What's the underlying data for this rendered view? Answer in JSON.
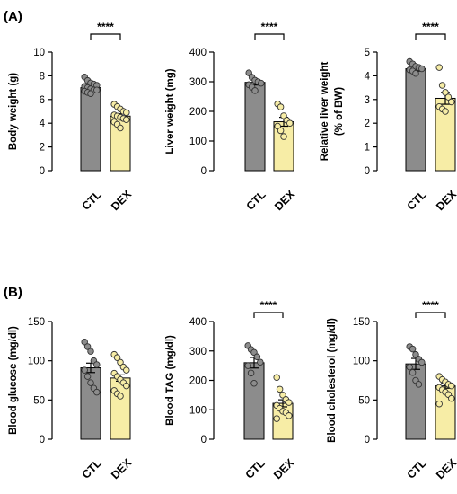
{
  "panels": [
    {
      "label": "(A)"
    },
    {
      "label": "(B)"
    }
  ],
  "colors": {
    "ctl_bar": "#8c8c8c",
    "dex_bar": "#f7eda6",
    "ctl_point": "#8c8c8c",
    "dex_point": "#f7eda6",
    "axis": "#000000"
  },
  "chart_data": [
    {
      "type": "bar",
      "panel": "A",
      "categories": [
        "CTL",
        "DEX"
      ],
      "ylabel": [
        "Body weight (g)"
      ],
      "ylim": [
        0,
        10
      ],
      "yticks": [
        "0",
        "2",
        "4",
        "6",
        "8",
        "10"
      ],
      "tick_values": [
        0,
        2,
        4,
        6,
        8,
        10
      ],
      "values": [
        7.0,
        4.6
      ],
      "sem": [
        0.15,
        0.2
      ],
      "points": [
        [
          7.9,
          7.6,
          7.4,
          7.3,
          7.2,
          7.1,
          7.0,
          6.9,
          6.8,
          6.8,
          6.7,
          6.6,
          6.5
        ],
        [
          5.6,
          5.4,
          5.2,
          5.0,
          4.9,
          4.7,
          4.6,
          4.5,
          4.4,
          4.3,
          4.1,
          3.9,
          3.6
        ]
      ],
      "significance": "****"
    },
    {
      "type": "bar",
      "panel": "A",
      "categories": [
        "CTL",
        "DEX"
      ],
      "ylabel": [
        "Liver weight (mg)"
      ],
      "ylim": [
        0,
        400
      ],
      "yticks": [
        "0",
        "100",
        "200",
        "300",
        "400"
      ],
      "tick_values": [
        0,
        100,
        200,
        300,
        400
      ],
      "values": [
        298,
        165
      ],
      "sem": [
        9,
        15
      ],
      "points": [
        [
          330,
          315,
          305,
          300,
          295,
          290,
          282,
          270
        ],
        [
          225,
          215,
          185,
          170,
          160,
          150,
          135,
          115
        ]
      ],
      "significance": "****"
    },
    {
      "type": "bar",
      "panel": "A",
      "categories": [
        "CTL",
        "DEX"
      ],
      "ylabel": [
        "Relative liver weight",
        "(% of BW)"
      ],
      "ylim": [
        0,
        5
      ],
      "yticks": [
        "0",
        "1",
        "2",
        "3",
        "4",
        "5"
      ],
      "tick_values": [
        0,
        1,
        2,
        3,
        4,
        5
      ],
      "values": [
        4.3,
        3.05
      ],
      "sem": [
        0.1,
        0.25
      ],
      "points": [
        [
          4.6,
          4.5,
          4.4,
          4.35,
          4.3,
          4.25,
          4.2,
          4.1
        ],
        [
          4.35,
          3.6,
          3.3,
          3.1,
          2.9,
          2.7,
          2.6,
          2.5
        ]
      ],
      "significance": "****"
    },
    {
      "type": "bar",
      "panel": "B",
      "categories": [
        "CTL",
        "DEX"
      ],
      "ylabel": [
        "Blood glucose (mg/dl)"
      ],
      "ylim": [
        0,
        150
      ],
      "yticks": [
        "0",
        "50",
        "100",
        "150"
      ],
      "tick_values": [
        0,
        50,
        100,
        150
      ],
      "values": [
        91,
        78
      ],
      "sem": [
        6,
        4
      ],
      "points": [
        [
          124,
          118,
          112,
          100,
          95,
          88,
          80,
          72,
          65,
          60
        ],
        [
          108,
          104,
          98,
          92,
          88,
          84,
          80,
          76,
          72,
          68,
          62,
          58,
          55
        ]
      ],
      "significance": ""
    },
    {
      "type": "bar",
      "panel": "B",
      "categories": [
        "CTL",
        "DEX"
      ],
      "ylabel": [
        "Blood TAG (mg/dl)"
      ],
      "ylim": [
        0,
        400
      ],
      "yticks": [
        "0",
        "100",
        "200",
        "300",
        "400"
      ],
      "tick_values": [
        0,
        100,
        200,
        300,
        400
      ],
      "values": [
        260,
        122
      ],
      "sem": [
        18,
        12
      ],
      "points": [
        [
          318,
          305,
          295,
          280,
          262,
          250,
          225,
          190
        ],
        [
          210,
          170,
          150,
          135,
          125,
          115,
          105,
          95,
          90,
          80,
          70
        ]
      ],
      "significance": "****"
    },
    {
      "type": "bar",
      "panel": "B",
      "categories": [
        "CTL",
        "DEX"
      ],
      "ylabel": [
        "Blood cholesterol (mg/dl)"
      ],
      "ylim": [
        0,
        150
      ],
      "yticks": [
        "0",
        "50",
        "100",
        "150"
      ],
      "tick_values": [
        0,
        50,
        100,
        150
      ],
      "values": [
        96,
        68
      ],
      "sem": [
        7,
        3
      ],
      "points": [
        [
          118,
          115,
          108,
          102,
          98,
          92,
          85,
          75,
          70
        ],
        [
          80,
          76,
          73,
          70,
          68,
          66,
          63,
          60,
          57,
          52,
          45
        ]
      ],
      "significance": "****"
    }
  ]
}
